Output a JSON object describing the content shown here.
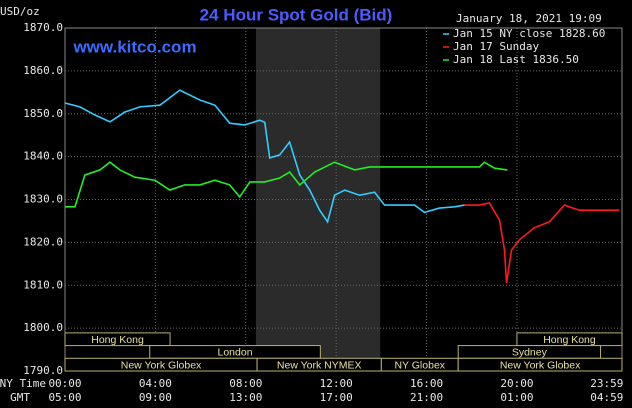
{
  "chart_data": {
    "type": "line",
    "title": "24 Hour Spot Gold (Bid)",
    "subtitle": "www.kitco.com",
    "y_label": "USD/oz",
    "date": "January 18, 2021 19:09",
    "x_row_labels": [
      "NY Time",
      "GMT"
    ],
    "xlim": [
      0,
      24.65
    ],
    "xticks": [
      {
        "value": 0,
        "label": "00:00"
      },
      {
        "value": 4,
        "label": "04:00"
      },
      {
        "value": 8,
        "label": "08:00"
      },
      {
        "value": 12,
        "label": "12:00"
      },
      {
        "value": 16,
        "label": "16:00"
      },
      {
        "value": 20,
        "label": "20:00"
      },
      {
        "value": 23.98,
        "label": "23:59"
      }
    ],
    "gmt_tick_labels": [
      "05:00",
      "09:00",
      "13:00",
      "17:00",
      "21:00",
      "01:00",
      "04:59"
    ],
    "ylim": [
      1790,
      1870
    ],
    "yticks": [
      {
        "value": 1790,
        "label": "1790.0"
      },
      {
        "value": 1800,
        "label": "1800.0"
      },
      {
        "value": 1810,
        "label": "1810.0"
      },
      {
        "value": 1820,
        "label": "1820.0"
      },
      {
        "value": 1830,
        "label": "1830.0"
      },
      {
        "value": 1840,
        "label": "1840.0"
      },
      {
        "value": 1850,
        "label": "1850.0"
      },
      {
        "value": 1860,
        "label": "1860.0"
      },
      {
        "value": 1870,
        "label": "1870.0"
      }
    ],
    "grid": true,
    "shaded_range": [
      8.45,
      13.95
    ],
    "sessions": [
      {
        "name": "Hong Kong",
        "start": 0,
        "end": 4.65,
        "row": 0
      },
      {
        "name": "Hong Kong",
        "start": 20,
        "end": 24.65,
        "row": 0
      },
      {
        "name": "London",
        "start": 3.75,
        "end": 11.3,
        "row": 1
      },
      {
        "name": "Sydney",
        "start": 17.4,
        "end": 23.7,
        "row": 1
      },
      {
        "name": "New York Globex",
        "start": 0,
        "end": 8.5,
        "row": 2
      },
      {
        "name": "New York NYMEX",
        "start": 8.5,
        "end": 14,
        "row": 2
      },
      {
        "name": "NY Globex",
        "start": 14,
        "end": 17.4,
        "row": 2
      },
      {
        "name": "New York Globex",
        "start": 17.4,
        "end": 24.65,
        "row": 2
      }
    ],
    "series": [
      {
        "name": "Jan 15 NY close 1828.60",
        "color": "#33ccff",
        "x": [
          0,
          0.66,
          1.33,
          1.99,
          2.65,
          3.31,
          4.2,
          5.08,
          5.97,
          6.63,
          7.29,
          7.96,
          8.62,
          8.84,
          9.06,
          9.5,
          9.94,
          10.39,
          10.83,
          11.27,
          11.62,
          11.93,
          12.38,
          13.04,
          13.7,
          14.14,
          14.81,
          15.47,
          15.91,
          16.57,
          17.24,
          17.68
        ],
        "values": [
          1852.5,
          1851.6,
          1849.7,
          1848.1,
          1850.4,
          1851.6,
          1852,
          1855.5,
          1853.2,
          1852,
          1847.8,
          1847.4,
          1848.5,
          1848,
          1839.7,
          1840.4,
          1843.4,
          1835.7,
          1832.2,
          1827.5,
          1824.8,
          1831,
          1832.2,
          1831,
          1831.7,
          1828.7,
          1828.7,
          1828.7,
          1827,
          1828,
          1828.3,
          1828.7
        ]
      },
      {
        "name": "Jan 17 Sunday",
        "color": "#ff1a1a",
        "x": [
          17.68,
          18.34,
          18.78,
          19.23,
          19.45,
          19.54,
          19.76,
          20.11,
          20.77,
          21.44,
          22.1,
          22.76,
          23.65,
          24.53
        ],
        "values": [
          1828.7,
          1828.7,
          1829.2,
          1825.2,
          1818.2,
          1810.5,
          1818.2,
          1820.6,
          1823.4,
          1824.8,
          1828.7,
          1827.5,
          1827.5,
          1827.5
        ]
      },
      {
        "name": "Jan 18 Last 1836.50",
        "color": "#22ee22",
        "x": [
          0,
          0.44,
          0.88,
          1.55,
          1.99,
          2.43,
          3.09,
          3.98,
          4.64,
          5.3,
          5.97,
          6.63,
          7.29,
          7.73,
          8.18,
          8.84,
          9.5,
          9.94,
          10.39,
          11.05,
          11.93,
          12.82,
          13.48,
          18.34,
          18.56,
          19.01,
          19.58
        ],
        "values": [
          1828.3,
          1828.3,
          1835.7,
          1836.9,
          1838.7,
          1836.9,
          1835.2,
          1834.5,
          1832.2,
          1833.4,
          1833.4,
          1834.5,
          1833.4,
          1830.6,
          1834.1,
          1834.1,
          1835,
          1836.4,
          1833.4,
          1836.4,
          1838.7,
          1836.9,
          1837.6,
          1837.6,
          1838.7,
          1837.3,
          1836.9
        ]
      }
    ]
  }
}
